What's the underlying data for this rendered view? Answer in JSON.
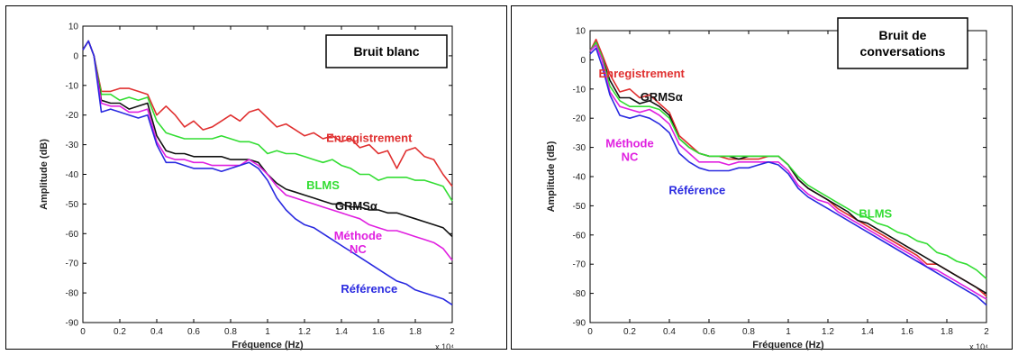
{
  "chart_data": [
    {
      "type": "line",
      "box_label": [
        "Bruit blanc"
      ],
      "xlabel": "Fréquence (Hz)",
      "ylabel": "Amplitude (dB)",
      "x_multiplier": "x 10⁴",
      "xlim": [
        0,
        2
      ],
      "ylim": [
        -90,
        10
      ],
      "xticks": [
        "0",
        "0.2",
        "0.4",
        "0.6",
        "0.8",
        "1",
        "1.2",
        "1.4",
        "1.6",
        "1.8",
        "2"
      ],
      "yticks": [
        "10",
        "0",
        "-10",
        "-20",
        "-30",
        "-40",
        "-50",
        "-60",
        "-70",
        "-80",
        "-90"
      ],
      "series": [
        {
          "name": "Enregistrement",
          "color": "#e03030",
          "x": [
            0,
            0.03,
            0.06,
            0.1,
            0.15,
            0.2,
            0.25,
            0.3,
            0.35,
            0.4,
            0.45,
            0.5,
            0.55,
            0.6,
            0.65,
            0.7,
            0.75,
            0.8,
            0.85,
            0.9,
            0.95,
            1.0,
            1.05,
            1.1,
            1.15,
            1.2,
            1.25,
            1.3,
            1.35,
            1.4,
            1.45,
            1.5,
            1.55,
            1.6,
            1.65,
            1.7,
            1.75,
            1.8,
            1.85,
            1.9,
            1.95,
            2.0
          ],
          "y": [
            2,
            5,
            0,
            -12,
            -12,
            -11,
            -11,
            -12,
            -13,
            -20,
            -17,
            -20,
            -24,
            -22,
            -25,
            -24,
            -22,
            -20,
            -22,
            -19,
            -18,
            -21,
            -24,
            -23,
            -25,
            -27,
            -26,
            -28,
            -27,
            -29,
            -28,
            -31,
            -30,
            -33,
            -32,
            -38,
            -32,
            -31,
            -34,
            -35,
            -40,
            -44
          ],
          "label_pos": [
            1.55,
            -29
          ]
        },
        {
          "name": "BLMS",
          "color": "#33dd33",
          "x": [
            0,
            0.03,
            0.06,
            0.1,
            0.15,
            0.2,
            0.25,
            0.3,
            0.35,
            0.4,
            0.45,
            0.5,
            0.55,
            0.6,
            0.65,
            0.7,
            0.75,
            0.8,
            0.85,
            0.9,
            0.95,
            1.0,
            1.05,
            1.1,
            1.15,
            1.2,
            1.25,
            1.3,
            1.35,
            1.4,
            1.45,
            1.5,
            1.55,
            1.6,
            1.65,
            1.7,
            1.75,
            1.8,
            1.85,
            1.9,
            1.95,
            2.0
          ],
          "y": [
            2,
            5,
            0,
            -13,
            -13,
            -15,
            -14,
            -15,
            -14,
            -22,
            -26,
            -27,
            -28,
            -28,
            -28,
            -28,
            -27,
            -28,
            -29,
            -29,
            -30,
            -33,
            -32,
            -33,
            -33,
            -34,
            -35,
            -36,
            -35,
            -37,
            -38,
            -40,
            -40,
            -42,
            -41,
            -41,
            -41,
            -42,
            -42,
            -43,
            -44,
            -49
          ],
          "label_pos": [
            1.3,
            -45
          ]
        },
        {
          "name": "GRMSα",
          "color": "#111111",
          "x": [
            0,
            0.03,
            0.06,
            0.1,
            0.15,
            0.2,
            0.25,
            0.3,
            0.35,
            0.4,
            0.45,
            0.5,
            0.55,
            0.6,
            0.65,
            0.7,
            0.75,
            0.8,
            0.85,
            0.9,
            0.95,
            1.0,
            1.05,
            1.1,
            1.15,
            1.2,
            1.25,
            1.3,
            1.35,
            1.4,
            1.45,
            1.5,
            1.55,
            1.6,
            1.65,
            1.7,
            1.75,
            1.8,
            1.85,
            1.9,
            1.95,
            2.0
          ],
          "y": [
            2,
            5,
            0,
            -15,
            -16,
            -16,
            -18,
            -17,
            -16,
            -27,
            -32,
            -33,
            -33,
            -34,
            -34,
            -34,
            -34,
            -35,
            -35,
            -35,
            -36,
            -40,
            -43,
            -45,
            -46,
            -47,
            -48,
            -49,
            -50,
            -50,
            -51,
            -51,
            -52,
            -52,
            -53,
            -53,
            -54,
            -55,
            -56,
            -57,
            -58,
            -61
          ],
          "label_pos": [
            1.48,
            -52
          ]
        },
        {
          "name": "Méthode NC",
          "color": "#e020e0",
          "x": [
            0,
            0.03,
            0.06,
            0.1,
            0.15,
            0.2,
            0.25,
            0.3,
            0.35,
            0.4,
            0.45,
            0.5,
            0.55,
            0.6,
            0.65,
            0.7,
            0.75,
            0.8,
            0.85,
            0.9,
            0.95,
            1.0,
            1.05,
            1.1,
            1.15,
            1.2,
            1.25,
            1.3,
            1.35,
            1.4,
            1.45,
            1.5,
            1.55,
            1.6,
            1.65,
            1.7,
            1.75,
            1.8,
            1.85,
            1.9,
            1.95,
            2.0
          ],
          "y": [
            2,
            5,
            0,
            -16,
            -17,
            -17,
            -19,
            -19,
            -18,
            -29,
            -34,
            -35,
            -35,
            -36,
            -36,
            -37,
            -37,
            -37,
            -37,
            -35,
            -37,
            -40,
            -44,
            -47,
            -48,
            -49,
            -50,
            -51,
            -52,
            -53,
            -54,
            -55,
            -57,
            -58,
            -59,
            -59,
            -60,
            -61,
            -62,
            -63,
            -65,
            -69
          ],
          "label_pos": [
            1.49,
            -62
          ]
        },
        {
          "name": "Référence",
          "color": "#2a2ae0",
          "x": [
            0,
            0.03,
            0.06,
            0.1,
            0.15,
            0.2,
            0.25,
            0.3,
            0.35,
            0.4,
            0.45,
            0.5,
            0.55,
            0.6,
            0.65,
            0.7,
            0.75,
            0.8,
            0.85,
            0.9,
            0.95,
            1.0,
            1.05,
            1.1,
            1.15,
            1.2,
            1.25,
            1.3,
            1.35,
            1.4,
            1.45,
            1.5,
            1.55,
            1.6,
            1.65,
            1.7,
            1.75,
            1.8,
            1.85,
            1.9,
            1.95,
            2.0
          ],
          "y": [
            2,
            5,
            0,
            -19,
            -18,
            -19,
            -20,
            -21,
            -20,
            -30,
            -36,
            -36,
            -37,
            -38,
            -38,
            -38,
            -39,
            -38,
            -37,
            -36,
            -38,
            -42,
            -48,
            -52,
            -55,
            -57,
            -58,
            -60,
            -62,
            -64,
            -66,
            -68,
            -70,
            -72,
            -74,
            -76,
            -77,
            -79,
            -80,
            -81,
            -82,
            -84
          ],
          "label_pos": [
            1.55,
            -80
          ]
        }
      ]
    },
    {
      "type": "line",
      "box_label": [
        "Bruit de",
        "conversations"
      ],
      "xlabel": "Fréquence (Hz)",
      "ylabel": "Amplitude (dB)",
      "x_multiplier": "x 10⁴",
      "xlim": [
        0,
        2
      ],
      "ylim": [
        -90,
        10
      ],
      "xticks": [
        "0",
        "0.2",
        "0.4",
        "0.6",
        "0.8",
        "1",
        "1.2",
        "1.4",
        "1.6",
        "1.8",
        "2"
      ],
      "yticks": [
        "10",
        "0",
        "-10",
        "-20",
        "-30",
        "-40",
        "-50",
        "-60",
        "-70",
        "-80",
        "-90"
      ],
      "series": [
        {
          "name": "Enregistrement",
          "color": "#e03030",
          "x": [
            0,
            0.03,
            0.06,
            0.1,
            0.15,
            0.2,
            0.25,
            0.3,
            0.35,
            0.4,
            0.45,
            0.5,
            0.55,
            0.6,
            0.65,
            0.7,
            0.75,
            0.8,
            0.85,
            0.9,
            0.95,
            1.0,
            1.05,
            1.1,
            1.15,
            1.2,
            1.25,
            1.3,
            1.35,
            1.4,
            1.45,
            1.5,
            1.55,
            1.6,
            1.65,
            1.7,
            1.75,
            1.8,
            1.85,
            1.9,
            1.95,
            2.0
          ],
          "y": [
            3,
            7,
            2,
            -5,
            -11,
            -10,
            -13,
            -12,
            -15,
            -18,
            -26,
            -29,
            -32,
            -33,
            -33,
            -34,
            -34,
            -34,
            -34,
            -33,
            -33,
            -36,
            -41,
            -44,
            -46,
            -48,
            -51,
            -53,
            -55,
            -57,
            -59,
            -61,
            -63,
            -65,
            -67,
            -70,
            -70,
            -72,
            -74,
            -76,
            -78,
            -81
          ],
          "label_pos": [
            0.26,
            -6
          ]
        },
        {
          "name": "GRMSα",
          "color": "#111111",
          "x": [
            0,
            0.03,
            0.06,
            0.1,
            0.15,
            0.2,
            0.25,
            0.3,
            0.35,
            0.4,
            0.45,
            0.5,
            0.55,
            0.6,
            0.65,
            0.7,
            0.75,
            0.8,
            0.85,
            0.9,
            0.95,
            1.0,
            1.05,
            1.1,
            1.15,
            1.2,
            1.25,
            1.3,
            1.35,
            1.4,
            1.45,
            1.5,
            1.55,
            1.6,
            1.65,
            1.7,
            1.75,
            1.8,
            1.85,
            1.9,
            1.95,
            2.0
          ],
          "y": [
            3,
            6,
            1,
            -7,
            -13,
            -13,
            -15,
            -14,
            -16,
            -19,
            -27,
            -30,
            -32,
            -33,
            -33,
            -33,
            -34,
            -33,
            -33,
            -33,
            -33,
            -36,
            -41,
            -44,
            -46,
            -48,
            -50,
            -52,
            -55,
            -56,
            -58,
            -60,
            -62,
            -64,
            -66,
            -68,
            -70,
            -72,
            -74,
            -76,
            -78,
            -80
          ],
          "label_pos": [
            0.36,
            -14
          ]
        },
        {
          "name": "BLMS",
          "color": "#33dd33",
          "x": [
            0,
            0.03,
            0.06,
            0.1,
            0.15,
            0.2,
            0.25,
            0.3,
            0.35,
            0.4,
            0.45,
            0.5,
            0.55,
            0.6,
            0.65,
            0.7,
            0.75,
            0.8,
            0.85,
            0.9,
            0.95,
            1.0,
            1.05,
            1.1,
            1.15,
            1.2,
            1.25,
            1.3,
            1.35,
            1.4,
            1.45,
            1.5,
            1.55,
            1.6,
            1.65,
            1.7,
            1.75,
            1.8,
            1.85,
            1.9,
            1.95,
            2.0
          ],
          "y": [
            3,
            6,
            1,
            -9,
            -14,
            -16,
            -16,
            -16,
            -17,
            -20,
            -27,
            -30,
            -32,
            -33,
            -33,
            -33,
            -33,
            -33,
            -33,
            -33,
            -33,
            -36,
            -40,
            -43,
            -45,
            -47,
            -49,
            -51,
            -53,
            -54,
            -56,
            -57,
            -59,
            -60,
            -62,
            -63,
            -66,
            -67,
            -69,
            -70,
            -72,
            -75
          ],
          "label_pos": [
            1.44,
            -54
          ]
        },
        {
          "name": "Méthode NC",
          "color": "#e020e0",
          "x": [
            0,
            0.03,
            0.06,
            0.1,
            0.15,
            0.2,
            0.25,
            0.3,
            0.35,
            0.4,
            0.45,
            0.5,
            0.55,
            0.6,
            0.65,
            0.7,
            0.75,
            0.8,
            0.85,
            0.9,
            0.95,
            1.0,
            1.05,
            1.1,
            1.15,
            1.2,
            1.25,
            1.3,
            1.35,
            1.4,
            1.45,
            1.5,
            1.55,
            1.6,
            1.65,
            1.7,
            1.75,
            1.8,
            1.85,
            1.9,
            1.95,
            2.0
          ],
          "y": [
            3,
            5,
            0,
            -11,
            -16,
            -17,
            -18,
            -17,
            -19,
            -22,
            -29,
            -32,
            -35,
            -35,
            -35,
            -36,
            -35,
            -35,
            -35,
            -35,
            -35,
            -38,
            -43,
            -46,
            -48,
            -49,
            -52,
            -54,
            -56,
            -58,
            -60,
            -62,
            -64,
            -66,
            -68,
            -71,
            -72,
            -74,
            -76,
            -78,
            -80,
            -82
          ],
          "label_pos": [
            0.2,
            -30
          ]
        },
        {
          "name": "Référence",
          "color": "#2a2ae0",
          "x": [
            0,
            0.03,
            0.06,
            0.1,
            0.15,
            0.2,
            0.25,
            0.3,
            0.35,
            0.4,
            0.45,
            0.5,
            0.55,
            0.6,
            0.65,
            0.7,
            0.75,
            0.8,
            0.85,
            0.9,
            0.95,
            1.0,
            1.05,
            1.1,
            1.15,
            1.2,
            1.25,
            1.3,
            1.35,
            1.4,
            1.45,
            1.5,
            1.55,
            1.6,
            1.65,
            1.7,
            1.75,
            1.8,
            1.85,
            1.9,
            1.95,
            2.0
          ],
          "y": [
            2,
            4,
            -2,
            -12,
            -19,
            -20,
            -19,
            -20,
            -22,
            -25,
            -32,
            -35,
            -37,
            -38,
            -38,
            -38,
            -37,
            -37,
            -36,
            -35,
            -36,
            -39,
            -44,
            -47,
            -49,
            -51,
            -53,
            -55,
            -57,
            -59,
            -61,
            -63,
            -65,
            -67,
            -69,
            -71,
            -73,
            -75,
            -77,
            -79,
            -81,
            -84
          ],
          "label_pos": [
            0.54,
            -46
          ]
        }
      ]
    }
  ]
}
